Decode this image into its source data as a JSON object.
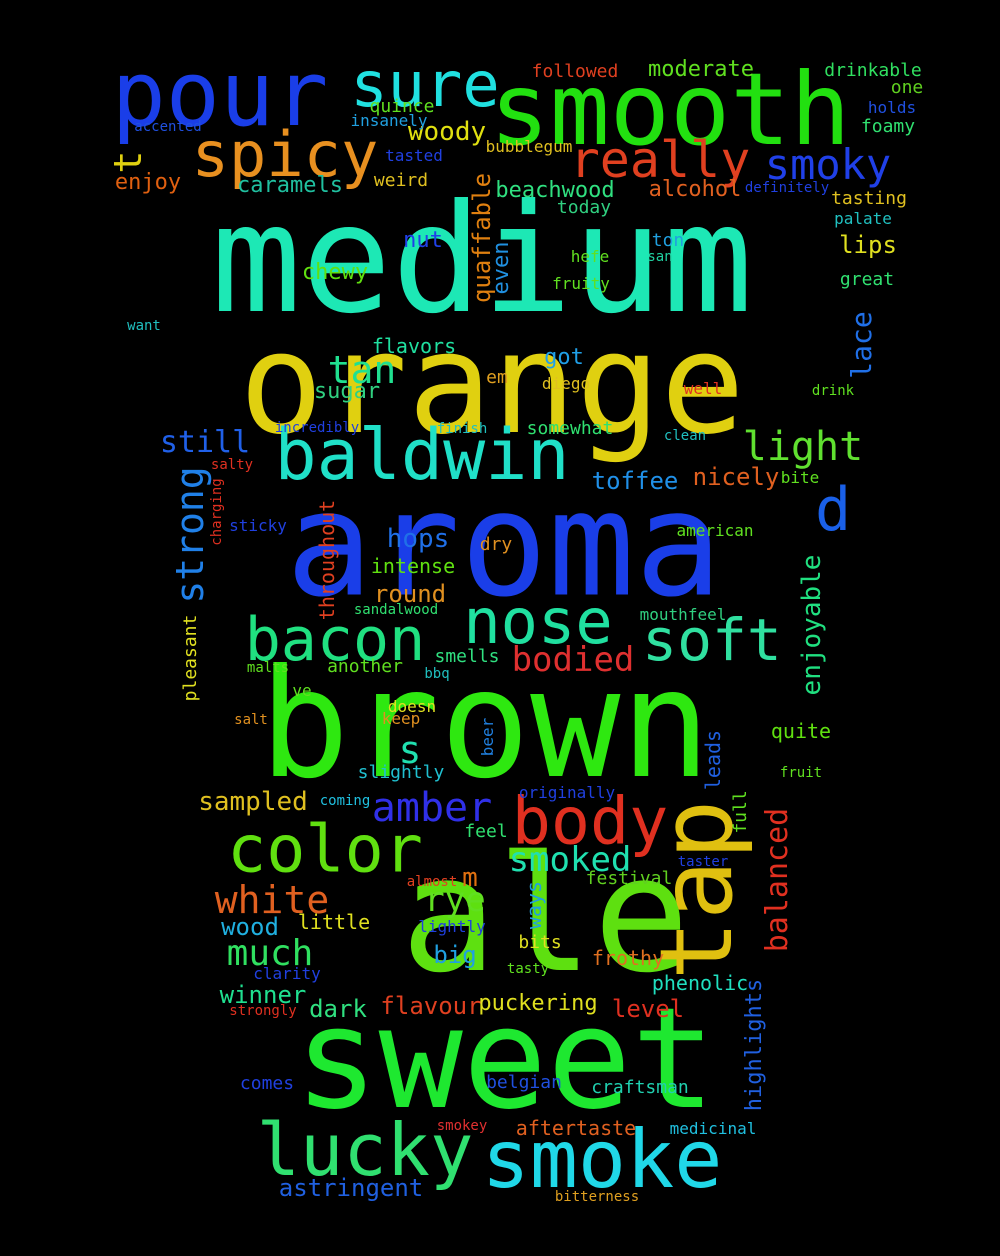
{
  "words": [
    {
      "text": "medium",
      "color": "#1de8b5"
    },
    {
      "text": "orange",
      "color": "#e0d010"
    },
    {
      "text": "aroma",
      "color": "#1a3ee8"
    },
    {
      "text": "brown",
      "color": "#2ee810"
    },
    {
      "text": "ale",
      "color": "#5ee010"
    },
    {
      "text": "sweet",
      "color": "#1ee830"
    },
    {
      "text": "smooth",
      "color": "#22e010"
    },
    {
      "text": "pour",
      "color": "#1a3ee8"
    },
    {
      "text": "sure",
      "color": "#20e0e0"
    },
    {
      "text": "spicy",
      "color": "#e89020"
    },
    {
      "text": "really",
      "color": "#e04020"
    },
    {
      "text": "smoky",
      "color": "#2040e8"
    },
    {
      "text": "baldwin",
      "color": "#20e0c8"
    },
    {
      "text": "bacon",
      "color": "#20e080"
    },
    {
      "text": "nose",
      "color": "#20e0a0"
    },
    {
      "text": "soft",
      "color": "#30e0a0"
    },
    {
      "text": "body",
      "color": "#e03020"
    },
    {
      "text": "color",
      "color": "#60e010"
    },
    {
      "text": "tap",
      "color": "#e0c010"
    },
    {
      "text": "lucky",
      "color": "#30e070"
    },
    {
      "text": "smoke",
      "color": "#20d8e8"
    },
    {
      "text": "light",
      "color": "#60e030"
    },
    {
      "text": "d",
      "color": "#1a60e8"
    },
    {
      "text": "t",
      "color": "#e0d010"
    },
    {
      "text": "tan",
      "color": "#20e090"
    },
    {
      "text": "strong",
      "color": "#2080e8"
    },
    {
      "text": "still",
      "color": "#2060e8"
    },
    {
      "text": "woody",
      "color": "#e0e010"
    },
    {
      "text": "caramels",
      "color": "#20c0a0"
    },
    {
      "text": "enjoy",
      "color": "#e06010"
    },
    {
      "text": "beachwood",
      "color": "#30e080"
    },
    {
      "text": "alcohol",
      "color": "#e06020"
    },
    {
      "text": "quaffable",
      "color": "#e08010"
    },
    {
      "text": "even",
      "color": "#2090e0"
    },
    {
      "text": "chewy",
      "color": "#60e010"
    },
    {
      "text": "nut",
      "color": "#2040e8"
    },
    {
      "text": "lace",
      "color": "#2070e8"
    },
    {
      "text": "lips",
      "color": "#e0e020"
    },
    {
      "text": "flavors",
      "color": "#20e0a0"
    },
    {
      "text": "sugar",
      "color": "#30d080"
    },
    {
      "text": "got",
      "color": "#20a0e8"
    },
    {
      "text": "em",
      "color": "#e0a020"
    },
    {
      "text": "amber",
      "color": "#3030e8"
    },
    {
      "text": "s",
      "color": "#20e0b0"
    },
    {
      "text": "smoked",
      "color": "#20e0b0"
    },
    {
      "text": "white",
      "color": "#e06020"
    },
    {
      "text": "much",
      "color": "#30e060"
    },
    {
      "text": "rye",
      "color": "#60e020"
    },
    {
      "text": "m",
      "color": "#e07010"
    },
    {
      "text": "hops",
      "color": "#2070e8"
    },
    {
      "text": "round",
      "color": "#e09020"
    },
    {
      "text": "intense",
      "color": "#60e010"
    },
    {
      "text": "bodied",
      "color": "#e03030"
    },
    {
      "text": "toffee",
      "color": "#2090e8"
    },
    {
      "text": "nicely",
      "color": "#e06020"
    },
    {
      "text": "enjoyable",
      "color": "#20e080"
    },
    {
      "text": "balanced",
      "color": "#e03020"
    },
    {
      "text": "sampled",
      "color": "#e0c020"
    },
    {
      "text": "wood",
      "color": "#20b0e0"
    },
    {
      "text": "winner",
      "color": "#20e090"
    },
    {
      "text": "dark",
      "color": "#30e080"
    },
    {
      "text": "flavour",
      "color": "#e04020"
    },
    {
      "text": "puckering",
      "color": "#e0e020"
    },
    {
      "text": "level",
      "color": "#e03020"
    },
    {
      "text": "big",
      "color": "#20a0e0"
    },
    {
      "text": "frothy",
      "color": "#e07020"
    },
    {
      "text": "phenolic",
      "color": "#20e0c0"
    },
    {
      "text": "highlights",
      "color": "#2060e0"
    },
    {
      "text": "full",
      "color": "#60e020"
    },
    {
      "text": "leads",
      "color": "#2060e0"
    },
    {
      "text": "quite",
      "color": "#60e010"
    },
    {
      "text": "festival",
      "color": "#60d020"
    },
    {
      "text": "ways",
      "color": "#20a0e0"
    },
    {
      "text": "little",
      "color": "#e0e020"
    },
    {
      "text": "bits",
      "color": "#e0e020"
    },
    {
      "text": "astringent",
      "color": "#2060e0"
    },
    {
      "text": "aftertaste",
      "color": "#e06020"
    },
    {
      "text": "craftsman",
      "color": "#20d0b0"
    },
    {
      "text": "belgian",
      "color": "#2050e0"
    },
    {
      "text": "comes",
      "color": "#2040e0"
    },
    {
      "text": "throughout",
      "color": "#e04020"
    },
    {
      "text": "pleasant",
      "color": "#e0e020"
    },
    {
      "text": "slightly",
      "color": "#20c0d0"
    },
    {
      "text": "another",
      "color": "#60e020"
    },
    {
      "text": "keep",
      "color": "#e09020"
    },
    {
      "text": "smells",
      "color": "#30e080"
    },
    {
      "text": "mouthfeel",
      "color": "#30d080"
    },
    {
      "text": "sandalwood",
      "color": "#30e070"
    },
    {
      "text": "moderate",
      "color": "#60e020"
    },
    {
      "text": "followed",
      "color": "#e04020"
    },
    {
      "text": "drinkable",
      "color": "#30e060"
    },
    {
      "text": "one",
      "color": "#60d020"
    },
    {
      "text": "holds",
      "color": "#2050e0"
    },
    {
      "text": "foamy",
      "color": "#30e070"
    },
    {
      "text": "quince",
      "color": "#60e020"
    },
    {
      "text": "insanely",
      "color": "#20a0e0"
    },
    {
      "text": "accented",
      "color": "#2050e0"
    },
    {
      "text": "tasted",
      "color": "#2040e0"
    },
    {
      "text": "bubblegum",
      "color": "#e0c020"
    },
    {
      "text": "weird",
      "color": "#e0c020"
    },
    {
      "text": "today",
      "color": "#30d080"
    },
    {
      "text": "definitely",
      "color": "#2040e0"
    },
    {
      "text": "tasting",
      "color": "#e0c020"
    },
    {
      "text": "palate",
      "color": "#20c0c0"
    },
    {
      "text": "ton",
      "color": "#20a0e0"
    },
    {
      "text": "san",
      "color": "#20d0a0"
    },
    {
      "text": "hefe",
      "color": "#60e020"
    },
    {
      "text": "fruity",
      "color": "#60e020"
    },
    {
      "text": "great",
      "color": "#30e070"
    },
    {
      "text": "want",
      "color": "#20c0c0"
    },
    {
      "text": "diego",
      "color": "#e0c020"
    },
    {
      "text": "well",
      "color": "#e03020"
    },
    {
      "text": "drink",
      "color": "#60e020"
    },
    {
      "text": "finish",
      "color": "#20c0c0"
    },
    {
      "text": "somewhat",
      "color": "#30e070"
    },
    {
      "text": "clean",
      "color": "#20c0c0"
    },
    {
      "text": "incredibly",
      "color": "#2040e0"
    },
    {
      "text": "salty",
      "color": "#e03020"
    },
    {
      "text": "charging",
      "color": "#e03020"
    },
    {
      "text": "sticky",
      "color": "#2040e0"
    },
    {
      "text": "bite",
      "color": "#60e020"
    },
    {
      "text": "dry",
      "color": "#e09020"
    },
    {
      "text": "american",
      "color": "#60e020"
    },
    {
      "text": "malts",
      "color": "#60e020"
    },
    {
      "text": "bbq",
      "color": "#20c0c0"
    },
    {
      "text": "ve",
      "color": "#60e020"
    },
    {
      "text": "salt",
      "color": "#e09020"
    },
    {
      "text": "doesn",
      "color": "#e0e020"
    },
    {
      "text": "beer",
      "color": "#2080e0"
    },
    {
      "text": "originally",
      "color": "#2040e0"
    },
    {
      "text": "coming",
      "color": "#20c0e0"
    },
    {
      "text": "fruit",
      "color": "#60e020"
    },
    {
      "text": "almost",
      "color": "#e04020"
    },
    {
      "text": "feel",
      "color": "#30e070"
    },
    {
      "text": "taster",
      "color": "#2040e0"
    },
    {
      "text": "lightly",
      "color": "#2040e0"
    },
    {
      "text": "clarity",
      "color": "#2040e0"
    },
    {
      "text": "strongly",
      "color": "#e03020"
    },
    {
      "text": "tasty",
      "color": "#60e020"
    },
    {
      "text": "smokey",
      "color": "#e03030"
    },
    {
      "text": "medicinal",
      "color": "#20c0e0"
    },
    {
      "text": "bitterness",
      "color": "#e0a020"
    }
  ]
}
